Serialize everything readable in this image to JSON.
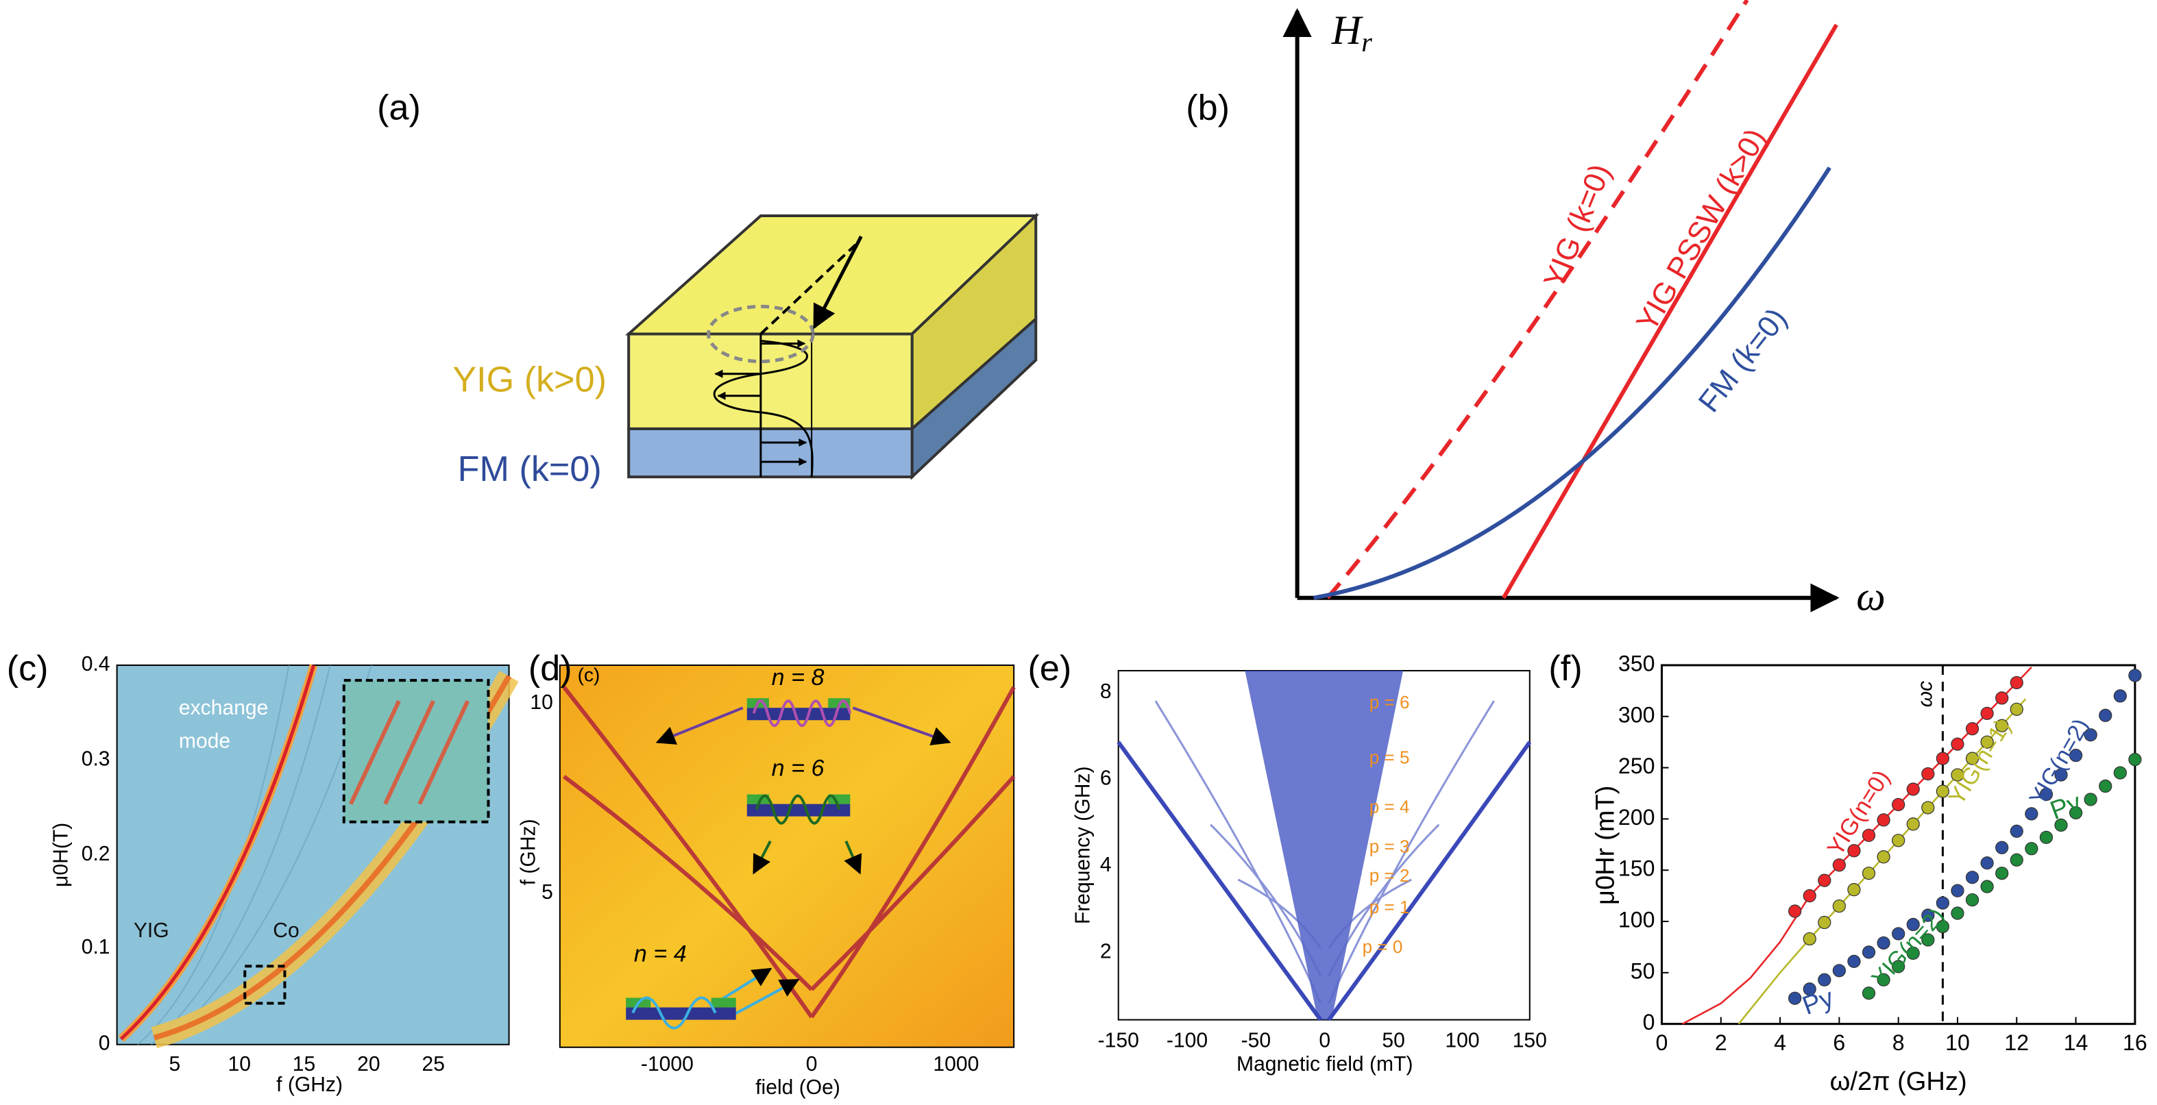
{
  "panels": {
    "a": {
      "label": "(a)",
      "layer_top": "YIG (k>0)",
      "layer_bottom": "FM (k=0)"
    },
    "b": {
      "label": "(b)",
      "y_axis": {
        "symbol": "H",
        "subscript": "r"
      },
      "x_axis": "ω",
      "curves": [
        "YIG (k=0)",
        "YIG PSSW (k>0)",
        "FM (k=0)"
      ]
    },
    "c": {
      "label": "(c)",
      "y_axis": "μ0H(T)",
      "x_axis": "f (GHz)",
      "yticks": [
        "0",
        "0.1",
        "0.2",
        "0.3",
        "0.4"
      ],
      "xticks": [
        "5",
        "10",
        "15",
        "20",
        "25"
      ],
      "annotations": [
        "exchange",
        "mode",
        "YIG",
        "Co"
      ]
    },
    "d": {
      "label": "(d)",
      "inset_label": "(c)",
      "y_axis": "f (GHz)",
      "x_axis": "field (Oe)",
      "yticks": [
        "5",
        "10"
      ],
      "xticks": [
        "-1000",
        "0",
        "1000"
      ],
      "modes": [
        "n = 8",
        "n = 6",
        "n = 4"
      ]
    },
    "e": {
      "label": "(e)",
      "y_axis": "Frequency (GHz)",
      "x_axis": "Magnetic field (mT)",
      "yticks": [
        "2",
        "4",
        "6",
        "8"
      ],
      "xticks": [
        "-150",
        "-100",
        "-50",
        "0",
        "50",
        "100",
        "150"
      ],
      "modes": [
        "p = 6",
        "p = 5",
        "p = 4",
        "p = 3",
        "p = 2",
        "p = 1",
        "p = 0"
      ]
    },
    "f": {
      "label": "(f)"
    }
  },
  "chart_data": {
    "type": "scatter",
    "xlabel": "ω/2π (GHz)",
    "ylabel": "μ0Hr (mT)",
    "xlim": [
      0,
      16
    ],
    "ylim": [
      0,
      350
    ],
    "xticks": [
      0,
      2,
      4,
      6,
      8,
      10,
      12,
      14,
      16
    ],
    "yticks": [
      0,
      50,
      100,
      150,
      200,
      250,
      300,
      350
    ],
    "marker_line": {
      "label": "ωc",
      "x": 9.5
    },
    "series": [
      {
        "name": "YIG(n=0)",
        "color": "#e8262a",
        "x": [
          4.5,
          5,
          5.5,
          6,
          6.5,
          7,
          7.5,
          8,
          8.5,
          9,
          9.5,
          10,
          10.5,
          11,
          11.5,
          12
        ],
        "values": [
          110,
          125,
          140,
          155,
          169,
          184,
          199,
          214,
          229,
          244,
          259,
          273,
          288,
          303,
          318,
          333
        ]
      },
      {
        "name": "YIG(n=1)",
        "color": "#b8b82a",
        "x": [
          5,
          5.5,
          6,
          6.5,
          7,
          7.5,
          8,
          8.5,
          9,
          9.5,
          10,
          10.5,
          11,
          11.5,
          12
        ],
        "values": [
          83,
          99,
          115,
          131,
          147,
          163,
          179,
          195,
          211,
          227,
          243,
          259,
          275,
          291,
          307
        ]
      },
      {
        "name": "YIG(n=2)",
        "color": "#2f4f9e",
        "x": [
          4.5,
          5,
          5.5,
          6,
          6.5,
          7,
          7.5,
          8,
          8.5,
          9,
          9.5,
          10,
          10.5,
          11,
          11.5,
          12,
          12.5,
          13,
          13.5,
          14,
          14.5,
          15,
          15.5,
          16
        ],
        "values": [
          25,
          34,
          43,
          52,
          61,
          70,
          79,
          88,
          97,
          106,
          118,
          130,
          143,
          157,
          172,
          188,
          205,
          224,
          243,
          262,
          282,
          301,
          320,
          340
        ]
      },
      {
        "name": "YIG(n=2)",
        "color": "#1f8a3a",
        "x": [
          7,
          7.5,
          8,
          8.5,
          9,
          9.5,
          10,
          10.5,
          11,
          11.5,
          12,
          12.5,
          13,
          13.5,
          14,
          14.5,
          15,
          15.5,
          16
        ],
        "values": [
          30,
          43,
          56,
          69,
          82,
          95,
          108,
          121,
          134,
          147,
          160,
          171,
          182,
          194,
          206,
          219,
          232,
          245,
          258
        ]
      }
    ],
    "fits": [
      {
        "color": "#e8262a",
        "x": [
          0.7,
          2,
          3,
          4,
          5,
          6,
          8,
          10,
          12.5
        ],
        "values": [
          0,
          20,
          45,
          80,
          125,
          155,
          214,
          273,
          348
        ]
      },
      {
        "color": "#b8b82a",
        "x": [
          2.6,
          4,
          5,
          6,
          8,
          10,
          12.3
        ],
        "values": [
          0,
          50,
          83,
          115,
          179,
          243,
          317
        ]
      }
    ],
    "annotations": [
      {
        "text": "Py",
        "color": "#2f4f9e"
      },
      {
        "text": "Py",
        "color": "#1f8a3a"
      }
    ]
  }
}
